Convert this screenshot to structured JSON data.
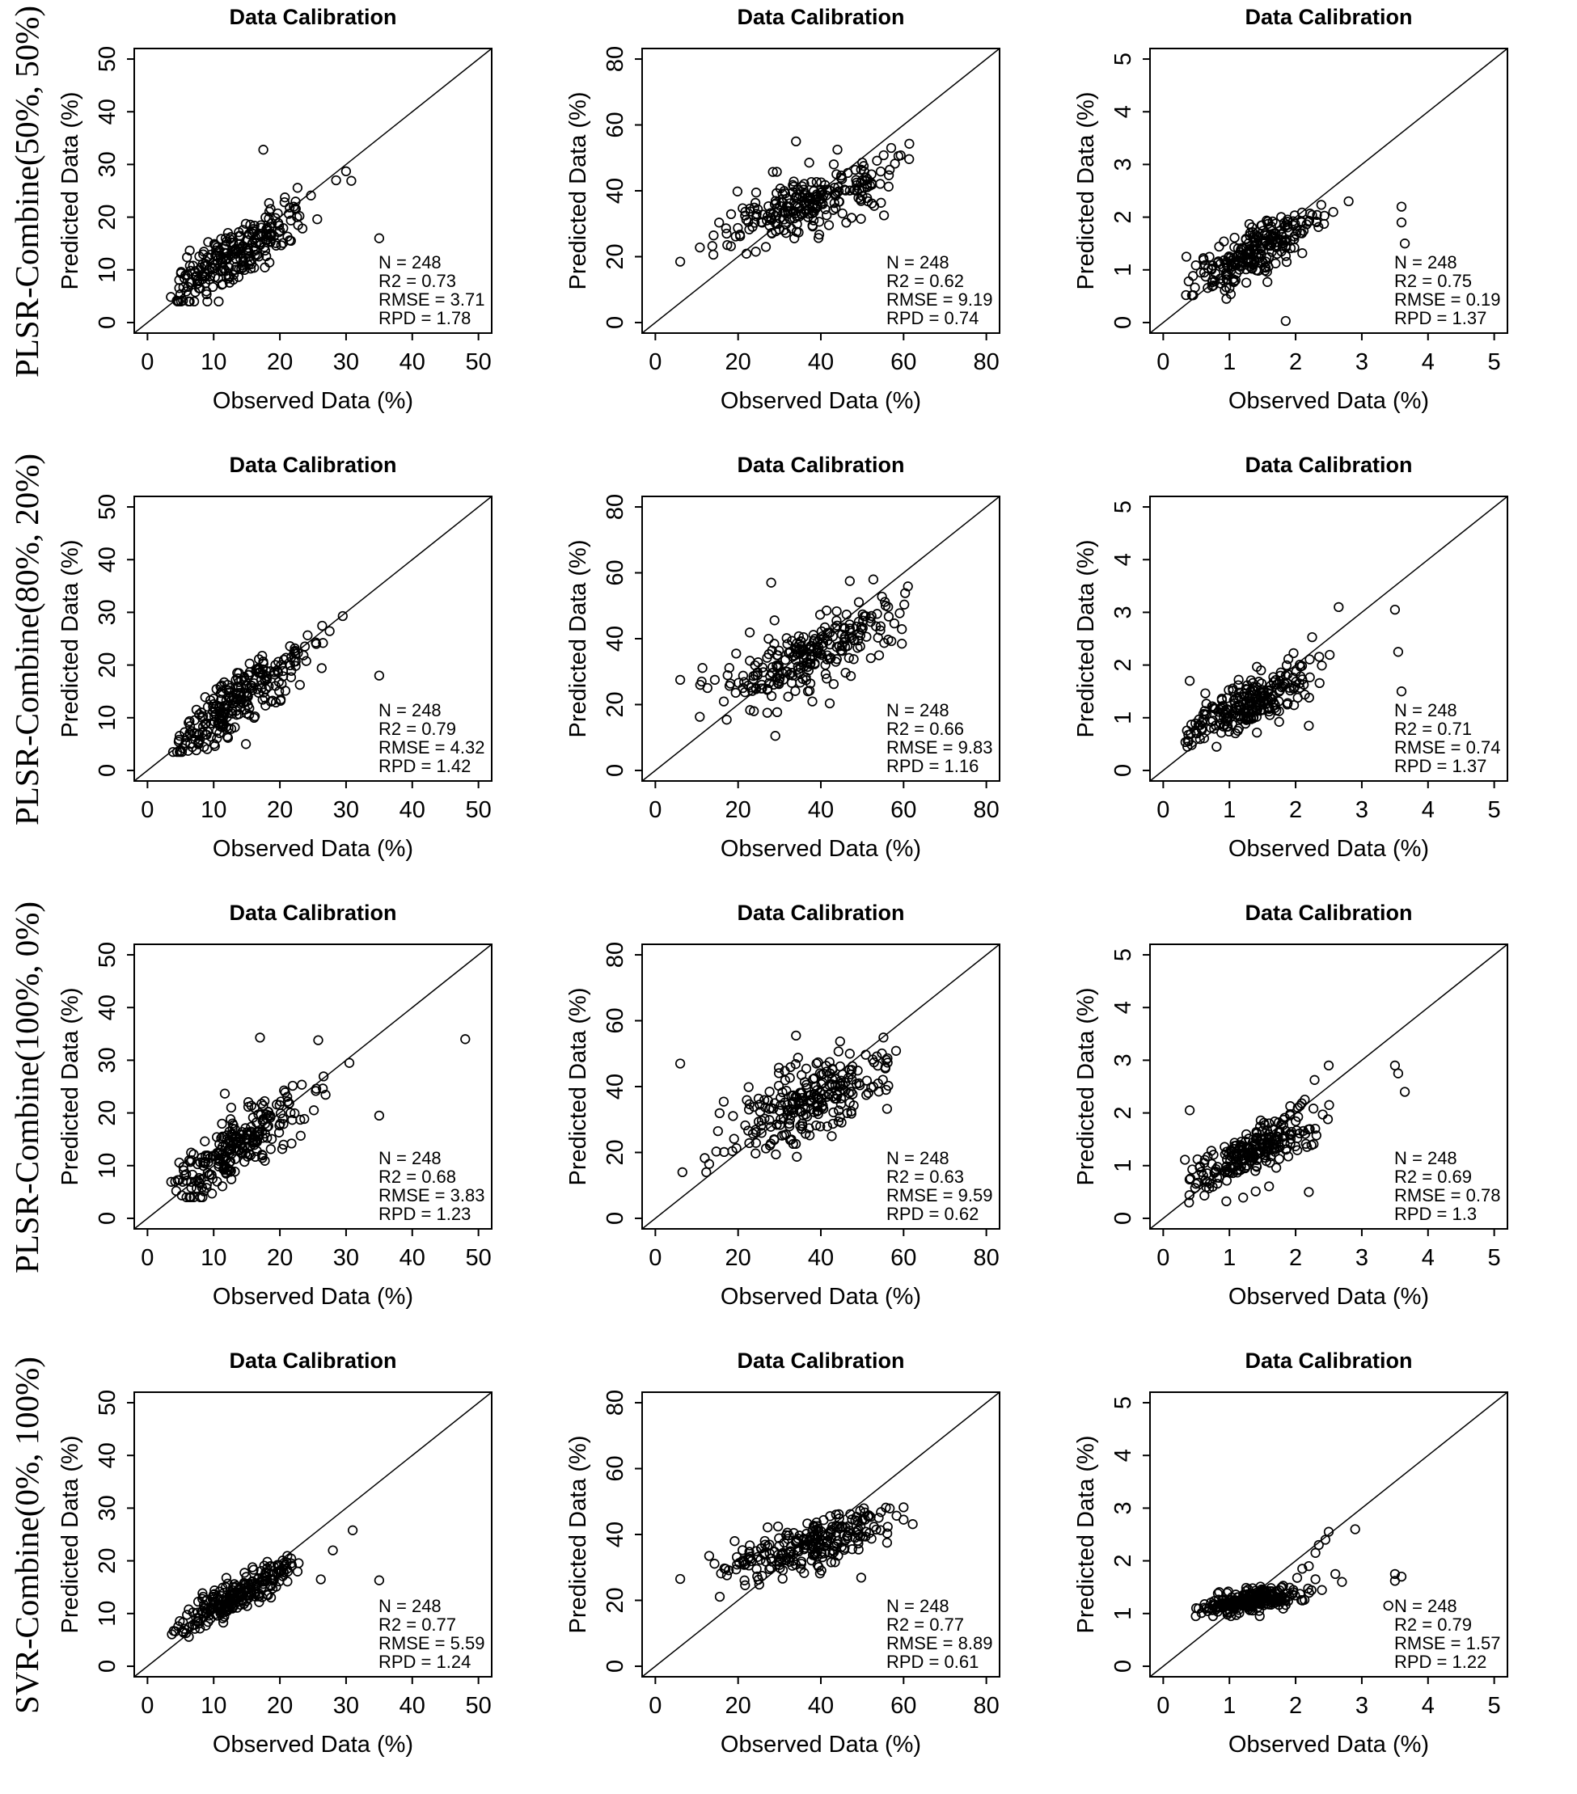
{
  "figure": {
    "background": "#ffffff",
    "foreground": "#000000",
    "panel_title": "Data Calibration",
    "x_axis_title": "Observed Data (%)",
    "y_axis_title": "Predicted Data (%)"
  },
  "rows": [
    {
      "label": "PLSR-Combine(50%, 50%)"
    },
    {
      "label": "PLSR-Combine(80%, 20%)"
    },
    {
      "label": "PLSR-Combine(100%, 0%)"
    },
    {
      "label": "SVR-Combine(0%, 100%)"
    }
  ],
  "chart_data": [
    {
      "type": "scatter",
      "row": 0,
      "col": 0,
      "title": "Data Calibration",
      "xlabel": "Observed Data (%)",
      "ylabel": "Predicted Data (%)",
      "xlim": [
        0,
        50
      ],
      "ylim": [
        0,
        50
      ],
      "xticks": [
        0,
        10,
        20,
        30,
        40,
        50
      ],
      "yticks": [
        0,
        10,
        20,
        30,
        40,
        50
      ],
      "identity_line": true,
      "legend": "none",
      "grid": false,
      "stats": {
        "N": 248,
        "R2": 0.73,
        "RMSE": 3.71,
        "RPD": 1.78
      },
      "stats_lines": [
        "N = 248",
        "R2 = 0.73",
        "RMSE = 3.71",
        "RPD = 1.78"
      ],
      "cloud": {
        "seed": 101,
        "n": 244,
        "x_mean": 13,
        "x_sd": 5.5,
        "x_min": 3.5,
        "x_max": 33,
        "intercept": 3.0,
        "slope": 0.78,
        "noise": 2.6,
        "y_min": 4,
        "y_max": 33
      },
      "outliers": [
        [
          35,
          16
        ],
        [
          17.5,
          32.8
        ],
        [
          30,
          28.7
        ],
        [
          28.5,
          27
        ]
      ]
    },
    {
      "type": "scatter",
      "row": 0,
      "col": 1,
      "title": "Data Calibration",
      "xlabel": "Observed Data (%)",
      "ylabel": "Predicted Data (%)",
      "xlim": [
        0,
        80
      ],
      "ylim": [
        0,
        80
      ],
      "xticks": [
        0,
        20,
        40,
        60,
        80
      ],
      "yticks": [
        0,
        20,
        40,
        60,
        80
      ],
      "identity_line": true,
      "legend": "none",
      "grid": false,
      "stats": {
        "N": 248,
        "R2": 0.62,
        "RMSE": 9.19,
        "RPD": 0.74
      },
      "stats_lines": [
        "N = 248",
        "R2 = 0.62",
        "RMSE = 9.19",
        "RPD = 0.74"
      ],
      "cloud": {
        "seed": 102,
        "n": 244,
        "x_mean": 38,
        "x_sd": 11,
        "x_min": 6,
        "x_max": 63,
        "intercept": 21,
        "slope": 0.4,
        "noise": 4.5,
        "y_min": 12,
        "y_max": 56
      },
      "outliers": [
        [
          6,
          18.5
        ],
        [
          34,
          55
        ],
        [
          44,
          52.5
        ],
        [
          57,
          53
        ]
      ]
    },
    {
      "type": "scatter",
      "row": 0,
      "col": 2,
      "title": "Data Calibration",
      "xlabel": "Observed Data (%)",
      "ylabel": "Predicted Data (%)",
      "xlim": [
        0,
        5
      ],
      "ylim": [
        0,
        5
      ],
      "xticks": [
        0,
        1,
        2,
        3,
        4,
        5
      ],
      "yticks": [
        0,
        1,
        2,
        3,
        4,
        5
      ],
      "identity_line": true,
      "legend": "none",
      "grid": false,
      "stats": {
        "N": 248,
        "R2": 0.75,
        "RMSE": 0.19,
        "RPD": 1.37
      },
      "stats_lines": [
        "N = 248",
        "R2 = 0.75",
        "RMSE = 0.19",
        "RPD = 1.37"
      ],
      "cloud": {
        "seed": 103,
        "n": 242,
        "x_mean": 1.35,
        "x_sd": 0.5,
        "x_min": 0.3,
        "x_max": 2.6,
        "intercept": 0.5,
        "slope": 0.6,
        "noise": 0.22,
        "y_min": 0.45,
        "y_max": 2.9
      },
      "outliers": [
        [
          3.6,
          2.2
        ],
        [
          3.6,
          1.9
        ],
        [
          3.65,
          1.5
        ],
        [
          1.85,
          0.03
        ],
        [
          2.8,
          2.3
        ],
        [
          0.35,
          1.25
        ]
      ]
    },
    {
      "type": "scatter",
      "row": 1,
      "col": 0,
      "title": "Data Calibration",
      "xlabel": "Observed Data (%)",
      "ylabel": "Predicted Data (%)",
      "xlim": [
        0,
        50
      ],
      "ylim": [
        0,
        50
      ],
      "xticks": [
        0,
        10,
        20,
        30,
        40,
        50
      ],
      "yticks": [
        0,
        10,
        20,
        30,
        40,
        50
      ],
      "identity_line": true,
      "legend": "none",
      "grid": false,
      "stats": {
        "N": 248,
        "R2": 0.79,
        "RMSE": 4.32,
        "RPD": 1.42
      },
      "stats_lines": [
        "N = 248",
        "R2 = 0.79",
        "RMSE = 4.32",
        "RPD = 1.42"
      ],
      "cloud": {
        "seed": 104,
        "n": 245,
        "x_mean": 13,
        "x_sd": 5.5,
        "x_min": 3.5,
        "x_max": 32,
        "intercept": 2.0,
        "slope": 0.82,
        "noise": 2.7,
        "y_min": 3.5,
        "y_max": 30
      },
      "outliers": [
        [
          35,
          18
        ],
        [
          29.5,
          29.3
        ],
        [
          25.5,
          24
        ]
      ]
    },
    {
      "type": "scatter",
      "row": 1,
      "col": 1,
      "title": "Data Calibration",
      "xlabel": "Observed Data (%)",
      "ylabel": "Predicted Data (%)",
      "xlim": [
        0,
        80
      ],
      "ylim": [
        0,
        80
      ],
      "xticks": [
        0,
        20,
        40,
        60,
        80
      ],
      "yticks": [
        0,
        20,
        40,
        60,
        80
      ],
      "identity_line": true,
      "legend": "none",
      "grid": false,
      "stats": {
        "N": 248,
        "R2": 0.66,
        "RMSE": 9.83,
        "RPD": 1.16
      },
      "stats_lines": [
        "N = 248",
        "R2 = 0.66",
        "RMSE = 9.83",
        "RPD = 1.16"
      ],
      "cloud": {
        "seed": 105,
        "n": 244,
        "x_mean": 38,
        "x_sd": 11,
        "x_min": 6,
        "x_max": 62,
        "intercept": 17,
        "slope": 0.5,
        "noise": 5.5,
        "y_min": 10,
        "y_max": 58
      },
      "outliers": [
        [
          6,
          27.5
        ],
        [
          28,
          57
        ],
        [
          47,
          57.5
        ],
        [
          29,
          10.5
        ]
      ]
    },
    {
      "type": "scatter",
      "row": 1,
      "col": 2,
      "title": "Data Calibration",
      "xlabel": "Observed Data (%)",
      "ylabel": "Predicted Data (%)",
      "xlim": [
        0,
        5
      ],
      "ylim": [
        0,
        5
      ],
      "xticks": [
        0,
        1,
        2,
        3,
        4,
        5
      ],
      "yticks": [
        0,
        1,
        2,
        3,
        4,
        5
      ],
      "identity_line": true,
      "legend": "none",
      "grid": false,
      "stats": {
        "N": 248,
        "R2": 0.71,
        "RMSE": 0.74,
        "RPD": 1.37
      },
      "stats_lines": [
        "N = 248",
        "R2 = 0.71",
        "RMSE = 0.74",
        "RPD = 1.37"
      ],
      "cloud": {
        "seed": 106,
        "n": 242,
        "x_mean": 1.35,
        "x_sd": 0.5,
        "x_min": 0.3,
        "x_max": 2.6,
        "intercept": 0.5,
        "slope": 0.6,
        "noise": 0.24,
        "y_min": 0.45,
        "y_max": 3.0
      },
      "outliers": [
        [
          3.5,
          3.05
        ],
        [
          3.55,
          2.25
        ],
        [
          3.6,
          1.5
        ],
        [
          2.65,
          3.1
        ],
        [
          0.4,
          1.7
        ],
        [
          2.2,
          0.85
        ]
      ]
    },
    {
      "type": "scatter",
      "row": 2,
      "col": 0,
      "title": "Data Calibration",
      "xlabel": "Observed Data (%)",
      "ylabel": "Predicted Data (%)",
      "xlim": [
        0,
        50
      ],
      "ylim": [
        0,
        50
      ],
      "xticks": [
        0,
        10,
        20,
        30,
        40,
        50
      ],
      "yticks": [
        0,
        10,
        20,
        30,
        40,
        50
      ],
      "identity_line": true,
      "legend": "none",
      "grid": false,
      "stats": {
        "N": 248,
        "R2": 0.68,
        "RMSE": 3.83,
        "RPD": 1.23
      },
      "stats_lines": [
        "N = 248",
        "R2 = 0.68",
        "RMSE = 3.83",
        "RPD = 1.23"
      ],
      "cloud": {
        "seed": 107,
        "n": 243,
        "x_mean": 13.5,
        "x_sd": 5.5,
        "x_min": 3.5,
        "x_max": 31,
        "intercept": 3.5,
        "slope": 0.78,
        "noise": 3.0,
        "y_min": 4,
        "y_max": 32
      },
      "outliers": [
        [
          48,
          34
        ],
        [
          35,
          19.5
        ],
        [
          25.8,
          33.8
        ],
        [
          17,
          34.3
        ],
        [
          30.5,
          29.5
        ]
      ]
    },
    {
      "type": "scatter",
      "row": 2,
      "col": 1,
      "title": "Data Calibration",
      "xlabel": "Observed Data (%)",
      "ylabel": "Predicted Data (%)",
      "xlim": [
        0,
        80
      ],
      "ylim": [
        0,
        80
      ],
      "xticks": [
        0,
        20,
        40,
        60,
        80
      ],
      "yticks": [
        0,
        20,
        40,
        60,
        80
      ],
      "identity_line": true,
      "legend": "none",
      "grid": false,
      "stats": {
        "N": 248,
        "R2": 0.63,
        "RMSE": 9.59,
        "RPD": 0.62
      },
      "stats_lines": [
        "N = 248",
        "R2 = 0.63",
        "RMSE = 9.59",
        "RPD = 0.62"
      ],
      "cloud": {
        "seed": 108,
        "n": 244,
        "x_mean": 38,
        "x_sd": 11,
        "x_min": 6,
        "x_max": 62,
        "intercept": 17,
        "slope": 0.5,
        "noise": 5.5,
        "y_min": 14,
        "y_max": 56
      },
      "outliers": [
        [
          6,
          47
        ],
        [
          34,
          55.5
        ],
        [
          13,
          16.5
        ],
        [
          47,
          50
        ]
      ]
    },
    {
      "type": "scatter",
      "row": 2,
      "col": 2,
      "title": "Data Calibration",
      "xlabel": "Observed Data (%)",
      "ylabel": "Predicted Data (%)",
      "xlim": [
        0,
        5
      ],
      "ylim": [
        0,
        5
      ],
      "xticks": [
        0,
        1,
        2,
        3,
        4,
        5
      ],
      "yticks": [
        0,
        1,
        2,
        3,
        4,
        5
      ],
      "identity_line": true,
      "legend": "none",
      "grid": false,
      "stats": {
        "N": 248,
        "R2": 0.69,
        "RMSE": 0.78,
        "RPD": 1.3
      },
      "stats_lines": [
        "N = 248",
        "R2 = 0.69",
        "RMSE = 0.78",
        "RPD = 1.3"
      ],
      "cloud": {
        "seed": 109,
        "n": 242,
        "x_mean": 1.4,
        "x_sd": 0.52,
        "x_min": 0.3,
        "x_max": 2.6,
        "intercept": 0.45,
        "slope": 0.62,
        "noise": 0.25,
        "y_min": 0.3,
        "y_max": 2.9
      },
      "outliers": [
        [
          3.5,
          2.9
        ],
        [
          3.55,
          2.75
        ],
        [
          3.65,
          2.4
        ],
        [
          0.4,
          2.05
        ],
        [
          2.5,
          2.9
        ],
        [
          2.2,
          0.5
        ]
      ]
    },
    {
      "type": "scatter",
      "row": 3,
      "col": 0,
      "title": "Data Calibration",
      "xlabel": "Observed Data (%)",
      "ylabel": "Predicted Data (%)",
      "xlim": [
        0,
        50
      ],
      "ylim": [
        0,
        50
      ],
      "xticks": [
        0,
        10,
        20,
        30,
        40,
        50
      ],
      "yticks": [
        0,
        10,
        20,
        30,
        40,
        50
      ],
      "identity_line": true,
      "legend": "none",
      "grid": false,
      "stats": {
        "N": 248,
        "R2": 0.77,
        "RMSE": 5.59,
        "RPD": 1.24
      },
      "stats_lines": [
        "N = 248",
        "R2 = 0.77",
        "RMSE = 5.59",
        "RPD = 1.24"
      ],
      "cloud": {
        "seed": 110,
        "n": 245,
        "x_mean": 13,
        "x_sd": 5.0,
        "x_min": 3.5,
        "x_max": 31,
        "intercept": 4.5,
        "slope": 0.65,
        "noise": 1.7,
        "y_min": 4.5,
        "y_max": 27
      },
      "outliers": [
        [
          35,
          16.3
        ],
        [
          31,
          25.8
        ],
        [
          28,
          22
        ]
      ]
    },
    {
      "type": "scatter",
      "row": 3,
      "col": 1,
      "title": "Data Calibration",
      "xlabel": "Observed Data (%)",
      "ylabel": "Predicted Data (%)",
      "xlim": [
        0,
        80
      ],
      "ylim": [
        0,
        80
      ],
      "xticks": [
        0,
        20,
        40,
        60,
        80
      ],
      "yticks": [
        0,
        20,
        40,
        60,
        80
      ],
      "identity_line": true,
      "legend": "none",
      "grid": false,
      "stats": {
        "N": 248,
        "R2": 0.77,
        "RMSE": 8.89,
        "RPD": 0.61
      },
      "stats_lines": [
        "N = 248",
        "R2 = 0.77",
        "RMSE = 8.89",
        "RPD = 0.61"
      ],
      "cloud": {
        "seed": 111,
        "n": 245,
        "x_mean": 39,
        "x_sd": 10.5,
        "x_min": 6,
        "x_max": 63,
        "intercept": 22,
        "slope": 0.4,
        "noise": 3.6,
        "y_min": 20,
        "y_max": 50
      },
      "outliers": [
        [
          6,
          26.5
        ],
        [
          13,
          33.5
        ],
        [
          60,
          44.5
        ]
      ]
    },
    {
      "type": "scatter",
      "row": 3,
      "col": 2,
      "title": "Data Calibration",
      "xlabel": "Observed Data (%)",
      "ylabel": "Predicted Data (%)",
      "xlim": [
        0,
        5
      ],
      "ylim": [
        0,
        5
      ],
      "xticks": [
        0,
        1,
        2,
        3,
        4,
        5
      ],
      "yticks": [
        0,
        1,
        2,
        3,
        4,
        5
      ],
      "identity_line": true,
      "legend": "none",
      "grid": false,
      "stats": {
        "N": 248,
        "R2": 0.79,
        "RMSE": 1.57,
        "RPD": 1.22
      },
      "stats_lines": [
        "N = 248",
        "R2 = 0.79",
        "RMSE = 1.57",
        "RPD = 1.22"
      ],
      "cloud": {
        "seed": 112,
        "n": 234,
        "x_mean": 1.3,
        "x_sd": 0.45,
        "x_min": 0.45,
        "x_max": 2.4,
        "intercept": 1.0,
        "slope": 0.2,
        "noise": 0.11,
        "y_min": 0.95,
        "y_max": 2.0
      },
      "outliers": [
        [
          2.5,
          2.55
        ],
        [
          2.35,
          2.3
        ],
        [
          2.3,
          2.15
        ],
        [
          2.45,
          2.4
        ],
        [
          2.9,
          2.6
        ],
        [
          2.6,
          1.75
        ],
        [
          2.7,
          1.6
        ],
        [
          3.5,
          1.75
        ],
        [
          3.5,
          1.62
        ],
        [
          3.6,
          1.7
        ],
        [
          3.4,
          1.15
        ],
        [
          2.2,
          1.9
        ],
        [
          2.3,
          1.65
        ],
        [
          2.1,
          1.85
        ]
      ]
    }
  ]
}
